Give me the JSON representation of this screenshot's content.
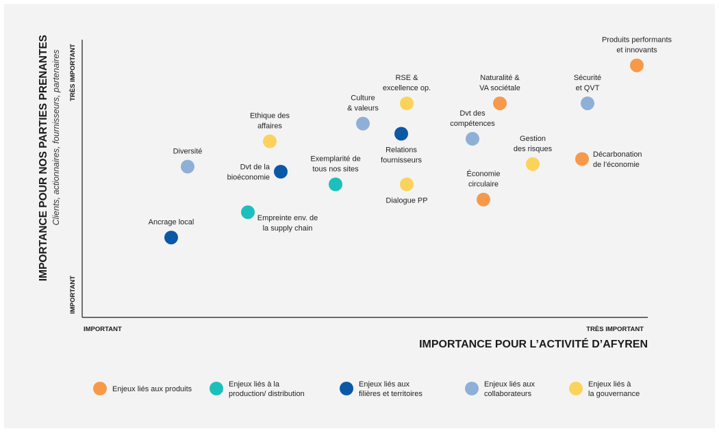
{
  "colors": {
    "produits": "#f7994a",
    "production": "#1dbfbd",
    "filieres": "#0b58a6",
    "collaborateurs": "#8eb0d6",
    "gouvernance": "#fbd35b",
    "axis": "#1a1a1a",
    "background": "#f3f3f3"
  },
  "chart_data": {
    "type": "scatter",
    "title": "",
    "ylabel": "IMPORTANCE POUR NOS PARTIES PRENANTES",
    "ylabel_sub": "Clients, actionnaires, fournisseurs, partenaires",
    "xlabel": "IMPORTANCE POUR L’ACTIVITÉ D’AFYREN",
    "x_ticks": {
      "low": "IMPORTANT",
      "high": "TRÈS IMPORTANT"
    },
    "y_ticks": {
      "low": "IMPORTANT",
      "high": "TRÈS IMPORTANT"
    },
    "xlim": [
      0,
      100
    ],
    "ylim": [
      0,
      100
    ],
    "grid": false,
    "legend_position": "bottom",
    "series": [
      {
        "name": "Enjeux liés aux produits",
        "color_key": "produits"
      },
      {
        "name": "Enjeux liés à la production/ distribution",
        "color_key": "production"
      },
      {
        "name": "Enjeux liés aux filières et territoires",
        "color_key": "filieres"
      },
      {
        "name": "Enjeux liés aux collaborateurs",
        "color_key": "collaborateurs"
      },
      {
        "name": "Enjeux liés à la gouvernance",
        "color_key": "gouvernance"
      }
    ],
    "points": [
      {
        "label": "Produits performants et innovants",
        "series": 0,
        "x": 98,
        "y": 92,
        "label_pos": "above"
      },
      {
        "label": "Naturalité & VA sociétale",
        "series": 0,
        "x": 73,
        "y": 77,
        "label_pos": "above"
      },
      {
        "label": "Décarbonation de l’économie",
        "series": 0,
        "x": 88,
        "y": 55,
        "label_pos": "right"
      },
      {
        "label": "Économie circulaire",
        "series": 0,
        "x": 70,
        "y": 39,
        "label_pos": "above"
      },
      {
        "label": "Exemplarité de tous nos sites",
        "series": 1,
        "x": 43,
        "y": 45,
        "label_pos": "above"
      },
      {
        "label": "Empreinte env. de la supply chain",
        "series": 1,
        "x": 27,
        "y": 34,
        "label_pos": "below-right"
      },
      {
        "label": "Relations fournisseurs",
        "series": 2,
        "x": 55,
        "y": 65,
        "label_pos": "below"
      },
      {
        "label": "Dvt de la bioéconomie",
        "series": 2,
        "x": 33,
        "y": 50,
        "label_pos": "left"
      },
      {
        "label": "Ancrage local",
        "series": 2,
        "x": 13,
        "y": 24,
        "label_pos": "above"
      },
      {
        "label": "Sécurité et QVT",
        "series": 3,
        "x": 89,
        "y": 77,
        "label_pos": "above"
      },
      {
        "label": "Culture & valeurs",
        "series": 3,
        "x": 48,
        "y": 69,
        "label_pos": "above"
      },
      {
        "label": "Dvt des compétences",
        "series": 3,
        "x": 68,
        "y": 63,
        "label_pos": "above"
      },
      {
        "label": "Diversité",
        "series": 3,
        "x": 16,
        "y": 52,
        "label_pos": "above"
      },
      {
        "label": "RSE & excellence op.",
        "series": 4,
        "x": 56,
        "y": 77,
        "label_pos": "above"
      },
      {
        "label": "Ethique des affaires",
        "series": 4,
        "x": 31,
        "y": 62,
        "label_pos": "above"
      },
      {
        "label": "Gestion des risques",
        "series": 4,
        "x": 79,
        "y": 53,
        "label_pos": "above"
      },
      {
        "label": "Dialogue PP",
        "series": 4,
        "x": 56,
        "y": 45,
        "label_pos": "below"
      }
    ]
  }
}
